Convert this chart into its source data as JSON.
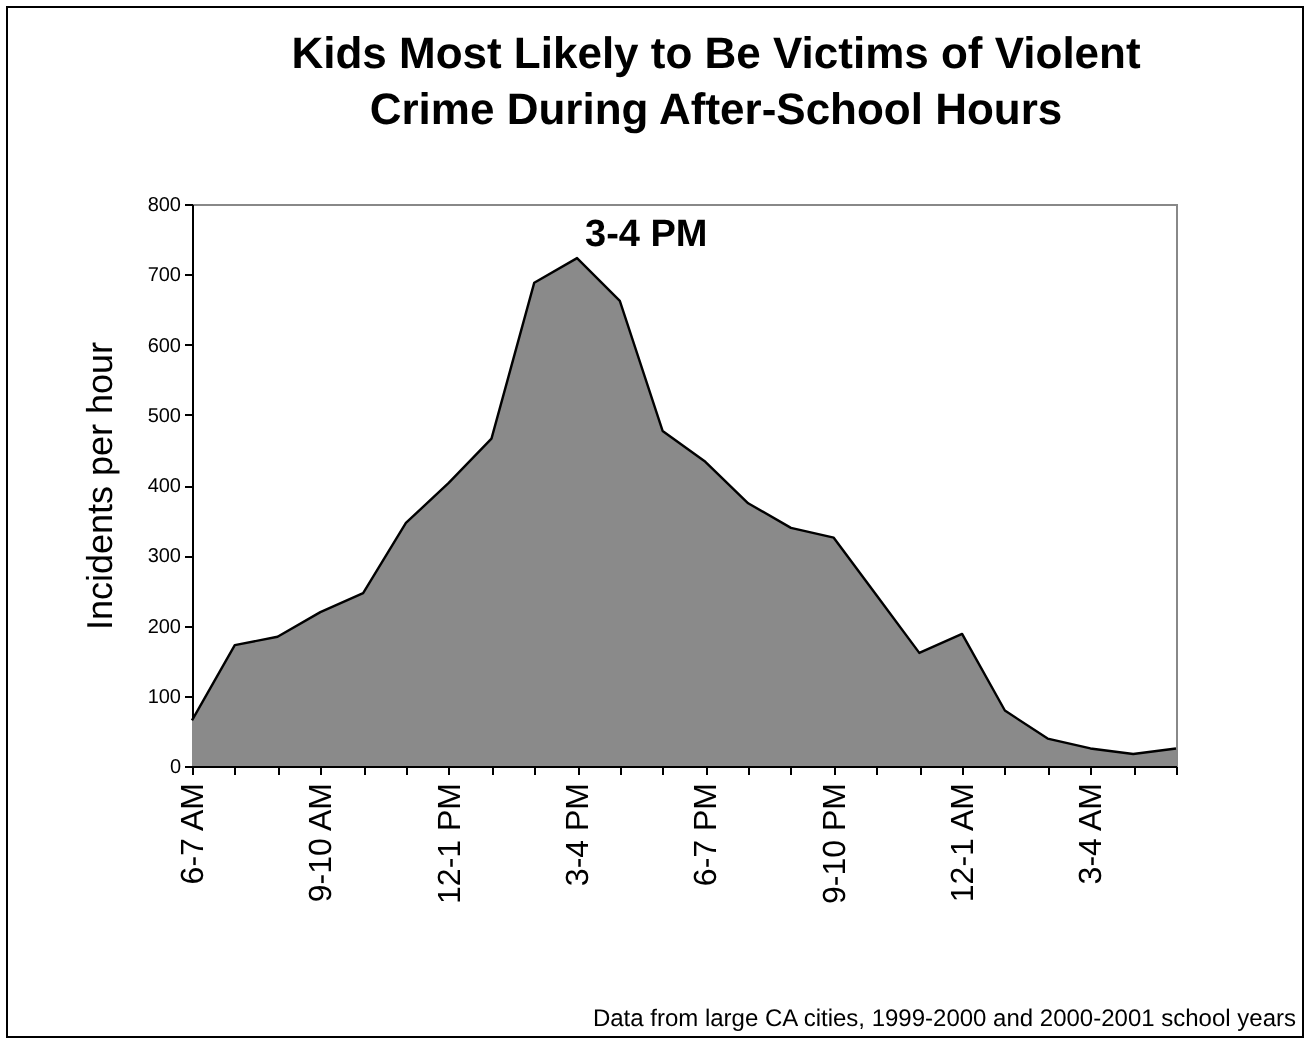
{
  "chart_data": {
    "type": "area",
    "title": "Kids Most Likely to Be Victims of Violent Crime During After-School Hours",
    "ylabel": "Incidents per hour",
    "categories": [
      "6-7 AM",
      null,
      null,
      "9-10 AM",
      null,
      null,
      "12-1 PM",
      null,
      null,
      "3-4 PM",
      null,
      null,
      "6-7 PM",
      null,
      null,
      "9-10 PM",
      null,
      null,
      "12-1 AM",
      null,
      null,
      "3-4 AM",
      null,
      null
    ],
    "series": [
      {
        "color": "#8a8a8a",
        "values": [
          65,
          172,
          184,
          219,
          246,
          346,
          403,
          466,
          688,
          723,
          662,
          477,
          433,
          374,
          339,
          325,
          243,
          161,
          188,
          79,
          39,
          25,
          17,
          25
        ]
      }
    ],
    "ylim": [
      0,
      800
    ],
    "yticks": [
      0,
      100,
      200,
      300,
      400,
      500,
      600,
      700,
      800
    ],
    "grid": false,
    "annotations": [
      {
        "text": "3-4 PM",
        "x": "3-4 PM",
        "y": 723
      },
      "Data from large CA cities, 1999-2000 and 2000-2001 school years"
    ]
  }
}
